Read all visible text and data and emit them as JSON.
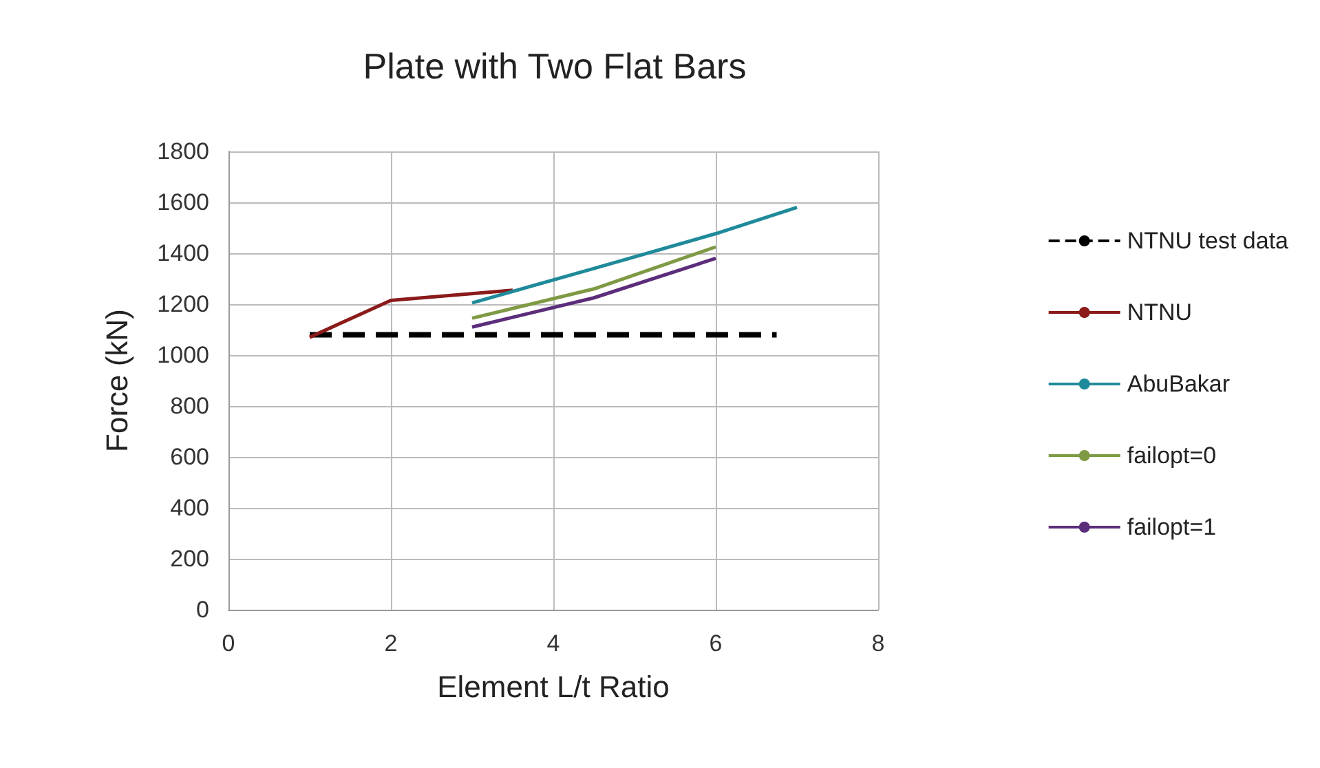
{
  "chart_data": {
    "type": "line",
    "title": "Plate with Two Flat Bars",
    "xlabel": "Element L/t Ratio",
    "ylabel": "Force (kN)",
    "xlim": [
      0,
      8
    ],
    "xticks": [
      0,
      2,
      4,
      6,
      8
    ],
    "ylim": [
      0,
      1800
    ],
    "yticks": [
      0,
      200,
      400,
      600,
      800,
      1000,
      1200,
      1400,
      1600,
      1800
    ],
    "grid": true,
    "legend": "right",
    "marker": "none",
    "series": [
      {
        "name": "NTNU test data",
        "color": "#000000",
        "line_style": "dashed",
        "x": [
          1,
          6.75
        ],
        "values": [
          1080,
          1080
        ]
      },
      {
        "name": "NTNU",
        "color": "#8b1a1a",
        "x": [
          1,
          2,
          3.5
        ],
        "values": [
          1070,
          1215,
          1255
        ]
      },
      {
        "name": "AbuBakar",
        "color": "#1f8a9a",
        "x": [
          3,
          4.5,
          6,
          7
        ],
        "values": [
          1205,
          1340,
          1477,
          1580
        ]
      },
      {
        "name": "failopt=0",
        "color": "#7f9a45",
        "x": [
          3,
          4.5,
          6
        ],
        "values": [
          1145,
          1260,
          1425
        ]
      },
      {
        "name": "failopt=1",
        "color": "#5b2d7a",
        "x": [
          3,
          4.5,
          6
        ],
        "values": [
          1110,
          1225,
          1380
        ]
      }
    ]
  }
}
